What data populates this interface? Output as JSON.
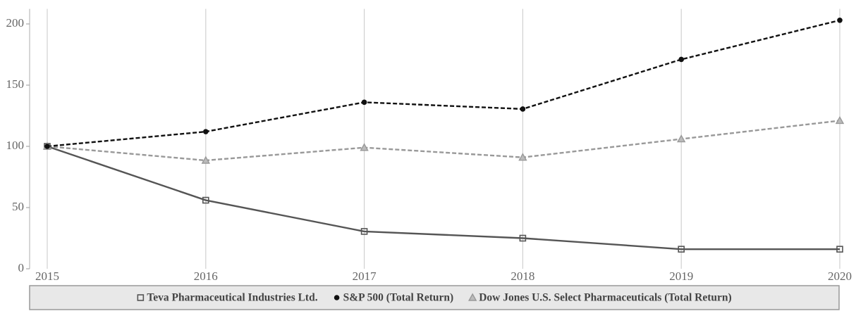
{
  "chart_data": {
    "type": "line",
    "x": [
      "2015",
      "2016",
      "2017",
      "2018",
      "2019",
      "2020"
    ],
    "series": [
      {
        "name": "Teva Pharmaceutical Industries Ltd.",
        "color": "#555555",
        "marker": "square",
        "dashed": false,
        "values": [
          100,
          56,
          30.5,
          25,
          16,
          16
        ]
      },
      {
        "name": "S&P 500 (Total Return)",
        "color": "#111111",
        "marker": "circle",
        "dashed": true,
        "values": [
          100,
          112,
          136,
          130.5,
          171,
          203
        ]
      },
      {
        "name": "Dow Jones U.S. Select Pharmaceuticals (Total Return)",
        "color": "#999999",
        "marker": "triangle",
        "dashed": true,
        "values": [
          100,
          88.5,
          99,
          91,
          106,
          121
        ]
      }
    ],
    "ylim": [
      0,
      210
    ],
    "yticks": [
      0,
      50,
      100,
      150,
      200
    ],
    "grid": true
  }
}
